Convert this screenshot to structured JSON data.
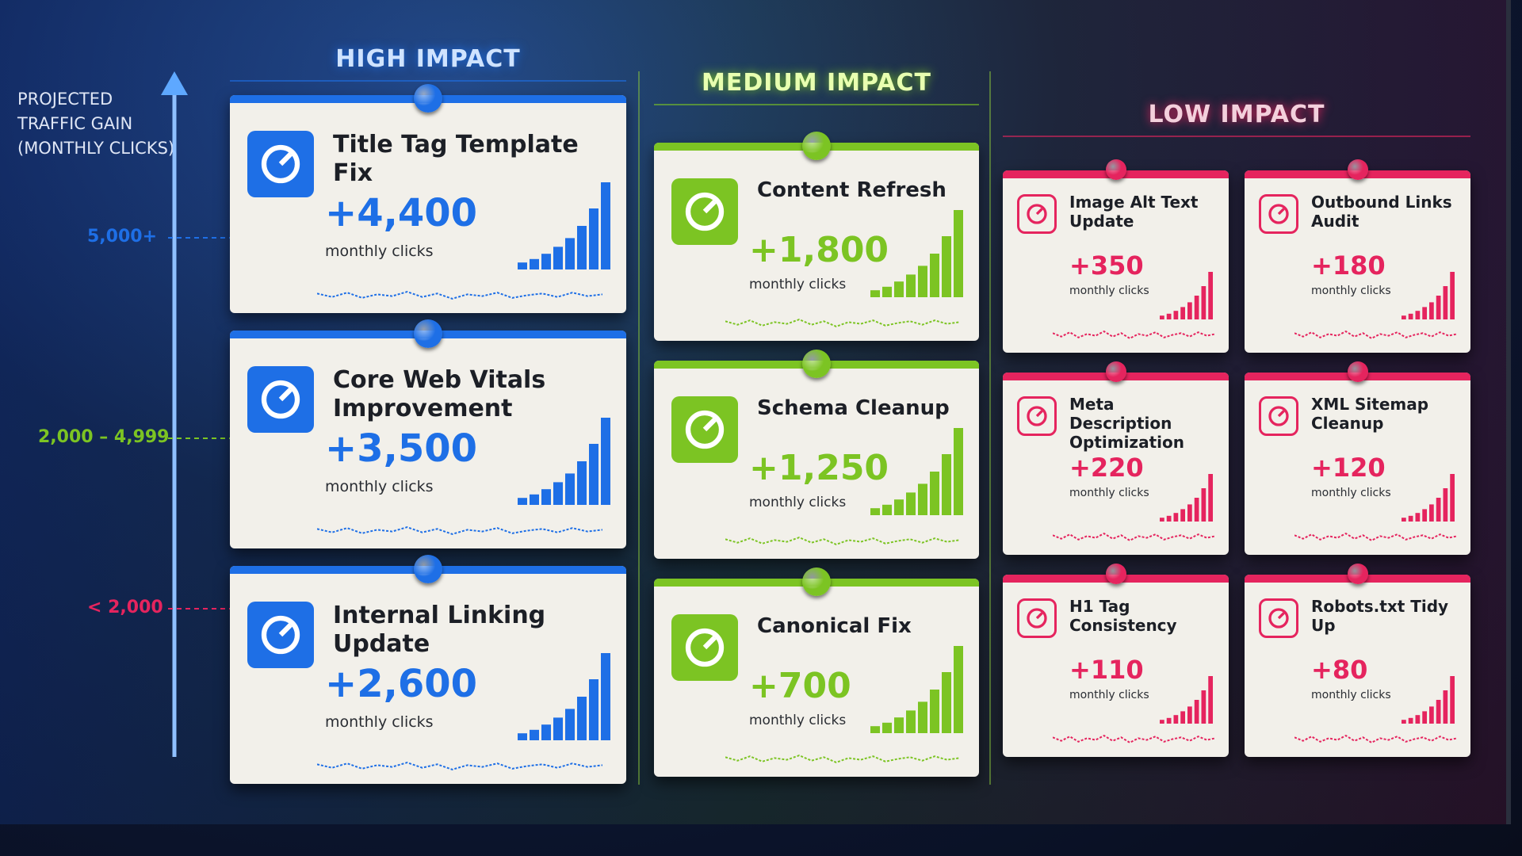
{
  "axis": {
    "label_lines": [
      "PROJECTED",
      "TRAFFIC GAIN",
      "(MONTHLY CLICKS)"
    ],
    "tiers": [
      "5,000+",
      "2,000 – 4,999",
      "< 2,000"
    ]
  },
  "columns": [
    {
      "title": "HIGH IMPACT",
      "cards": [
        {
          "title": "Title Tag Template Fix",
          "value": "+4,400",
          "unit": "monthly clicks"
        },
        {
          "title": "Core Web Vitals Improvement",
          "value": "+3,500",
          "unit": "monthly clicks"
        },
        {
          "title": "Internal Linking Update",
          "value": "+2,600",
          "unit": "monthly clicks"
        }
      ]
    },
    {
      "title": "MEDIUM IMPACT",
      "cards": [
        {
          "title": "Content Refresh",
          "value": "+1,800",
          "unit": "monthly clicks"
        },
        {
          "title": "Schema Cleanup",
          "value": "+1,250",
          "unit": "monthly clicks"
        },
        {
          "title": "Canonical Fix",
          "value": "+700",
          "unit": "monthly clicks"
        }
      ]
    },
    {
      "title": "LOW IMPACT",
      "cards": [
        {
          "title": "Image Alt Text Update",
          "value": "+350",
          "unit": "monthly clicks"
        },
        {
          "title": "Outbound Links Audit",
          "value": "+180",
          "unit": "monthly clicks"
        },
        {
          "title": "Meta Description Optimization",
          "value": "+220",
          "unit": "monthly clicks"
        },
        {
          "title": "XML Sitemap Cleanup",
          "value": "+120",
          "unit": "monthly clicks"
        },
        {
          "title": "H1 Tag Consistency",
          "value": "+110",
          "unit": "monthly clicks"
        },
        {
          "title": "Robots.txt Tidy Up",
          "value": "+80",
          "unit": "monthly clicks"
        }
      ]
    }
  ]
}
